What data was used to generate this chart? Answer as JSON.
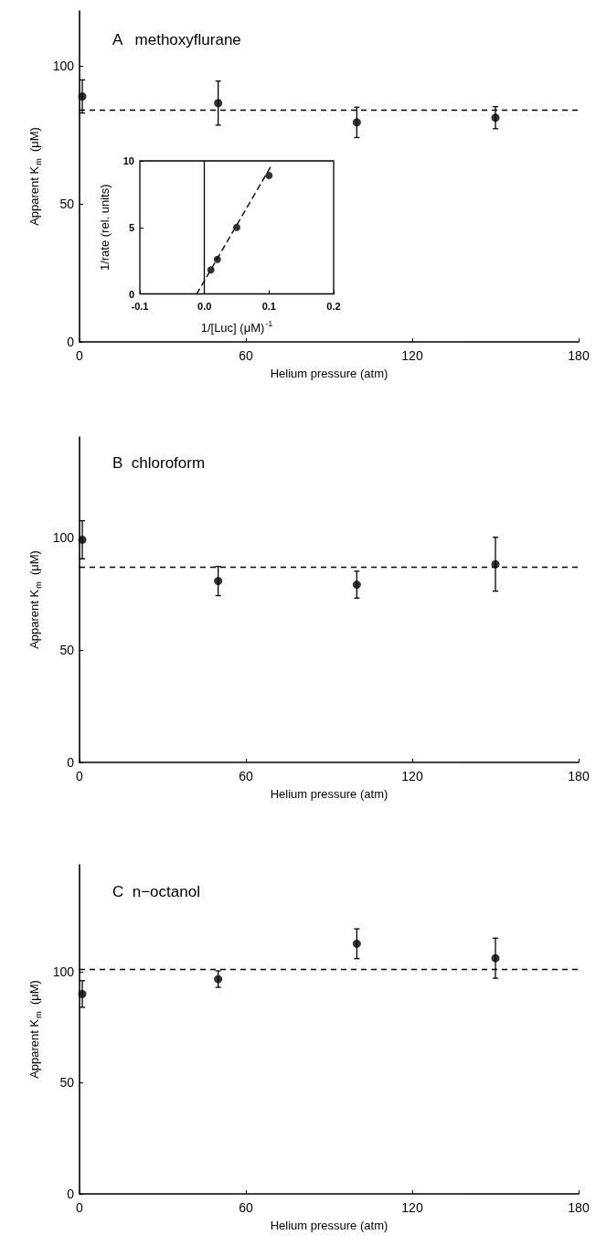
{
  "chart_data": [
    {
      "type": "scatter",
      "title": "A   methoxyflurane",
      "xlabel": "Helium pressure (atm)",
      "ylabel": "Apparent K$_{m}$  (μM)",
      "x": [
        1,
        50,
        100,
        150
      ],
      "values": [
        89,
        86.6,
        79.6,
        81.3
      ],
      "errors": [
        6,
        8,
        5.5,
        4
      ],
      "color": "#000000",
      "marker": "circle",
      "xlim": [
        0,
        180
      ],
      "xticks": [
        0,
        60,
        120,
        180
      ],
      "ylim": [
        0,
        120
      ],
      "yticks": [
        0,
        50,
        100
      ],
      "grid": false,
      "ref_lines": [
        {
          "axis": "y",
          "value": 84,
          "label": null,
          "line_style": "dashed"
        }
      ]
    },
    {
      "type": "scatter",
      "xlabel": "1/[Luc] (μM)$^{-1}$",
      "ylabel": "1/rate (rel. units)",
      "color": "#000000",
      "marker": "circle",
      "xlim": [
        -0.1,
        0.2
      ],
      "xticks": [
        -0.1,
        {
          "value": 0,
          "label": "0.0"
        },
        0.1,
        0.2
      ],
      "ylim": [
        0,
        10
      ],
      "yticks": [
        0,
        5,
        10
      ],
      "grid": false,
      "series": [
        {
          "x": [
            0.01,
            0.02,
            0.05,
            0.1
          ],
          "values": [
            1.8,
            2.6,
            5.0,
            8.9
          ]
        },
        {
          "type": "line",
          "x": [
            -0.012,
            0.103
          ],
          "values": [
            0,
            9.6
          ],
          "line_style": "dashed",
          "marker": "none"
        }
      ],
      "ref_lines": [
        {
          "axis": "x",
          "value": 0,
          "label": null,
          "line_style": "solid"
        }
      ]
    },
    {
      "type": "scatter",
      "title": "B  chloroform",
      "xlabel": "Helium pressure (atm)",
      "ylabel": "Apparent K$_{m}$  (μM)",
      "x": [
        1,
        50,
        100,
        150
      ],
      "values": [
        99.2,
        80.8,
        79.2,
        88.3
      ],
      "errors": [
        8.5,
        6.5,
        6,
        12
      ],
      "color": "#000000",
      "marker": "circle",
      "xlim": [
        0,
        180
      ],
      "xticks": [
        0,
        60,
        120,
        180
      ],
      "ylim": [
        0,
        145
      ],
      "yticks": [
        0,
        50,
        100
      ],
      "grid": false,
      "ref_lines": [
        {
          "axis": "y",
          "value": 87,
          "label": null,
          "line_style": "dashed"
        }
      ]
    },
    {
      "type": "scatter",
      "title": "C  n−octanol",
      "xlabel": "Helium pressure (atm)",
      "ylabel": "Apparent K$_{m}$  (μM)",
      "x": [
        1,
        50,
        100,
        150
      ],
      "values": [
        89.9,
        96.6,
        112.5,
        106
      ],
      "errors": [
        6,
        3.7,
        6.7,
        9
      ],
      "color": "#000000",
      "marker": "circle",
      "xlim": [
        0,
        180
      ],
      "xticks": [
        0,
        60,
        120,
        180
      ],
      "ylim": [
        0,
        148
      ],
      "yticks": [
        0,
        50,
        100
      ],
      "grid": false,
      "ref_lines": [
        {
          "axis": "y",
          "value": 101,
          "label": null,
          "line_style": "dashed"
        }
      ]
    }
  ]
}
